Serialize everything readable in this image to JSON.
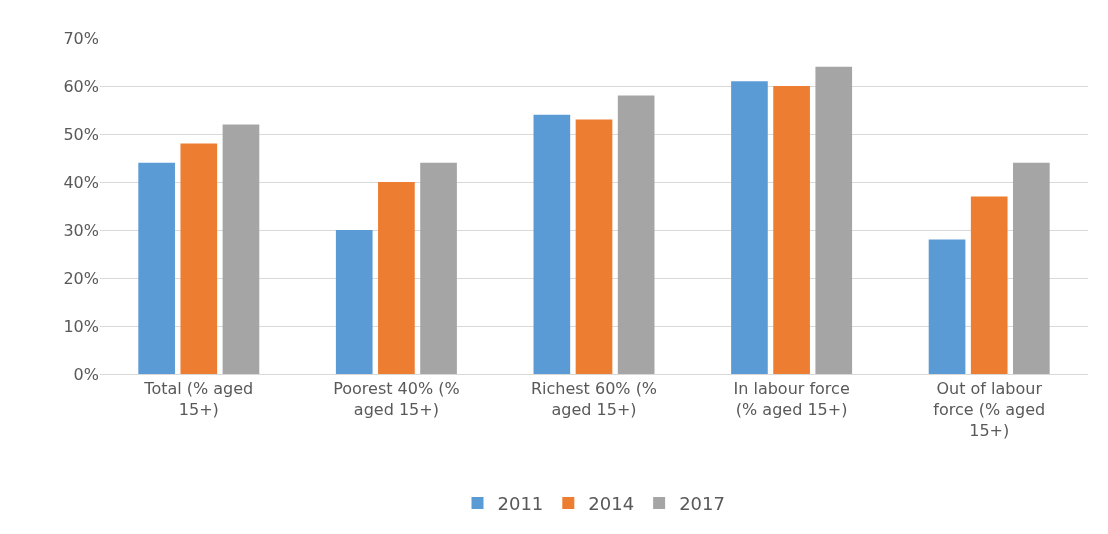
{
  "chart_data": {
    "type": "bar",
    "categories": [
      "Total (% aged 15+)",
      "Poorest 40% (% aged 15+)",
      "Richest 60% (% aged 15+)",
      "In labour force (% aged 15+)",
      "Out of labour force (% aged 15+)"
    ],
    "series": [
      {
        "name": "2011",
        "color": "#5b9bd5",
        "values": [
          44,
          30,
          54,
          61,
          28
        ]
      },
      {
        "name": "2014",
        "color": "#ed7d31",
        "values": [
          48,
          40,
          53,
          60,
          37
        ]
      },
      {
        "name": "2017",
        "color": "#a5a5a5",
        "values": [
          52,
          44,
          58,
          64,
          44
        ]
      }
    ],
    "ylim": [
      0,
      70
    ],
    "yticks": [
      {
        "value": 0,
        "label": "0%"
      },
      {
        "value": 10,
        "label": "10%"
      },
      {
        "value": 20,
        "label": "20%"
      },
      {
        "value": 30,
        "label": "30%"
      },
      {
        "value": 40,
        "label": "40%"
      },
      {
        "value": 50,
        "label": "50%"
      },
      {
        "value": 60,
        "label": "60%"
      },
      {
        "value": 70,
        "label": "70%"
      }
    ],
    "grid": "y",
    "legend": "bottom"
  }
}
